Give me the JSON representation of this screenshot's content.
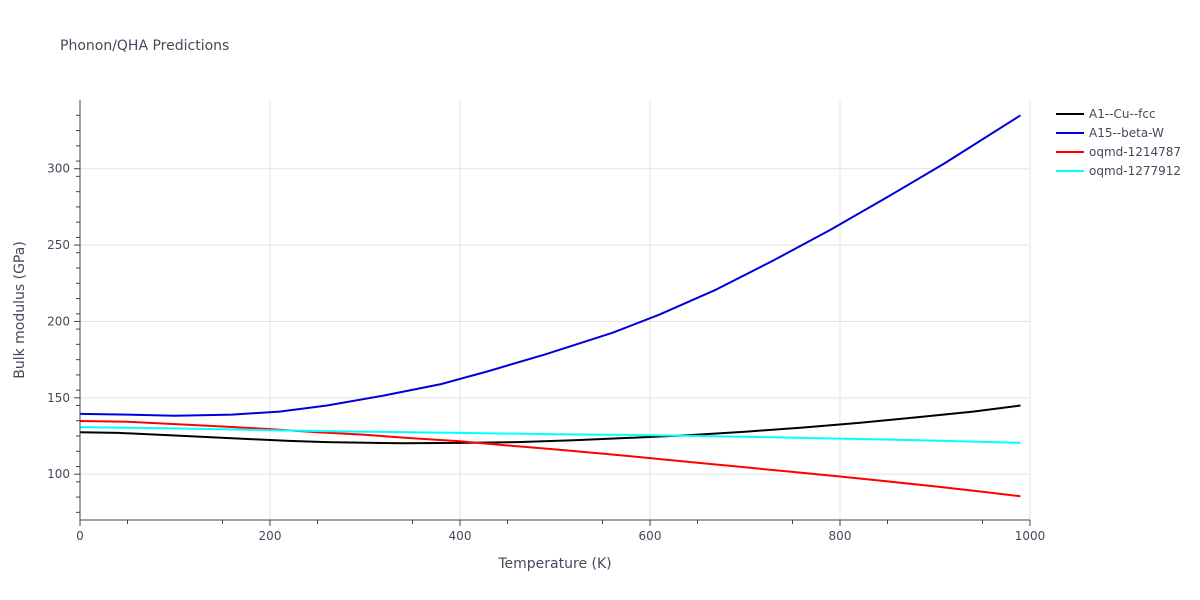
{
  "chart_data": {
    "type": "line",
    "title": "Phonon/QHA Predictions",
    "xlabel": "Temperature (K)",
    "ylabel": "Bulk modulus (GPa)",
    "xlim": [
      0,
      1000
    ],
    "ylim": [
      70,
      345
    ],
    "x_ticks": [
      0,
      200,
      400,
      600,
      800,
      1000
    ],
    "y_ticks": [
      100,
      150,
      200,
      250,
      300
    ],
    "grid": true,
    "legend_position": "top-right",
    "series": [
      {
        "name": "A1--Cu--fcc",
        "color": "#000000",
        "x": [
          0,
          40,
          100,
          160,
          220,
          260,
          340,
          400,
          460,
          520,
          580,
          640,
          700,
          760,
          820,
          880,
          940,
          990
        ],
        "y": [
          127.5,
          127.0,
          125.3,
          123.5,
          121.8,
          121.0,
          120.2,
          120.5,
          121.0,
          122.2,
          123.8,
          125.5,
          127.8,
          130.5,
          133.6,
          137.2,
          141.0,
          145.0
        ]
      },
      {
        "name": "A15--beta-W",
        "color": "#0000dd",
        "x": [
          0,
          50,
          100,
          160,
          210,
          260,
          320,
          380,
          430,
          490,
          560,
          610,
          670,
          730,
          790,
          850,
          910,
          990
        ],
        "y": [
          139.5,
          139.0,
          138.2,
          139.0,
          141.0,
          145.0,
          151.5,
          159.0,
          167.5,
          178.5,
          192.5,
          204.5,
          221.0,
          240.0,
          260.0,
          281.5,
          303.5,
          335.0
        ]
      },
      {
        "name": "oqmd-1214787",
        "color": "#ff0000",
        "x": [
          0,
          50,
          100,
          150,
          200,
          250,
          300,
          350,
          400,
          450,
          500,
          550,
          600,
          650,
          700,
          750,
          800,
          850,
          900,
          950,
          990
        ],
        "y": [
          134.8,
          134.3,
          132.8,
          131.2,
          129.5,
          127.5,
          125.8,
          123.5,
          121.5,
          118.8,
          116.2,
          113.5,
          110.5,
          107.5,
          104.5,
          101.5,
          98.5,
          95.3,
          92.0,
          88.5,
          85.5
        ]
      },
      {
        "name": "oqmd-1277912",
        "color": "#00ffff",
        "x": [
          0,
          100,
          200,
          300,
          400,
          500,
          600,
          700,
          800,
          900,
          990
        ],
        "y": [
          130.8,
          130.0,
          128.8,
          127.8,
          127.0,
          126.2,
          125.5,
          124.5,
          123.3,
          122.0,
          120.5
        ]
      }
    ]
  }
}
